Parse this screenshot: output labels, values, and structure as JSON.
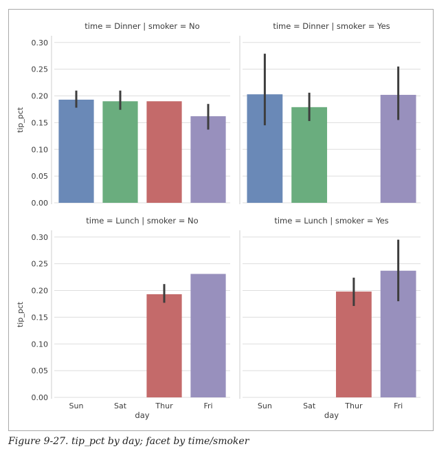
{
  "caption": "Figure 9-27. tip_pct by day; facet by time/smoker",
  "colors": {
    "Sun": "#6a89b7",
    "Sat": "#6aad7e",
    "Thur": "#c46a6a",
    "Fri": "#9890bd",
    "errorbar": "#3d3d3d",
    "grid": "#dddddd",
    "spine": "#cccccc"
  },
  "chart_data": [
    {
      "type": "bar",
      "title": "time = Dinner | smoker = No",
      "ylabel": "tip_pct",
      "xlabel": "",
      "categories": [
        "Sun",
        "Sat",
        "Thur",
        "Fri"
      ],
      "values": [
        0.193,
        0.19,
        0.19,
        0.162
      ],
      "ci": [
        [
          0.178,
          0.21
        ],
        [
          0.174,
          0.21
        ],
        [
          0.19,
          0.19
        ],
        [
          0.137,
          0.185
        ]
      ],
      "ylim": [
        0,
        0.31
      ],
      "yticks": [
        "0.00",
        "0.05",
        "0.10",
        "0.15",
        "0.20",
        "0.25",
        "0.30"
      ],
      "show_xticklabels": false,
      "grid": true
    },
    {
      "type": "bar",
      "title": "time = Dinner | smoker = Yes",
      "ylabel": "",
      "xlabel": "",
      "categories": [
        "Sun",
        "Sat",
        "Thur",
        "Fri"
      ],
      "values": [
        0.203,
        0.179,
        null,
        0.202
      ],
      "ci": [
        [
          0.145,
          0.279
        ],
        [
          0.153,
          0.206
        ],
        null,
        [
          0.155,
          0.255
        ]
      ],
      "ylim": [
        0,
        0.31
      ],
      "yticks": [],
      "show_xticklabels": false,
      "grid": true
    },
    {
      "type": "bar",
      "title": "time = Lunch | smoker = No",
      "ylabel": "tip_pct",
      "xlabel": "day",
      "categories": [
        "Sun",
        "Sat",
        "Thur",
        "Fri"
      ],
      "values": [
        null,
        null,
        0.193,
        0.231
      ],
      "ci": [
        null,
        null,
        [
          0.177,
          0.212
        ],
        [
          0.231,
          0.231
        ]
      ],
      "ylim": [
        0,
        0.31
      ],
      "yticks": [
        "0.00",
        "0.05",
        "0.10",
        "0.15",
        "0.20",
        "0.25",
        "0.30"
      ],
      "show_xticklabels": true,
      "grid": true
    },
    {
      "type": "bar",
      "title": "time = Lunch | smoker = Yes",
      "ylabel": "",
      "xlabel": "day",
      "categories": [
        "Sun",
        "Sat",
        "Thur",
        "Fri"
      ],
      "values": [
        null,
        null,
        0.198,
        0.237
      ],
      "ci": [
        null,
        null,
        [
          0.171,
          0.224
        ],
        [
          0.18,
          0.295
        ]
      ],
      "ylim": [
        0,
        0.31
      ],
      "yticks": [],
      "show_xticklabels": true,
      "grid": true
    }
  ]
}
